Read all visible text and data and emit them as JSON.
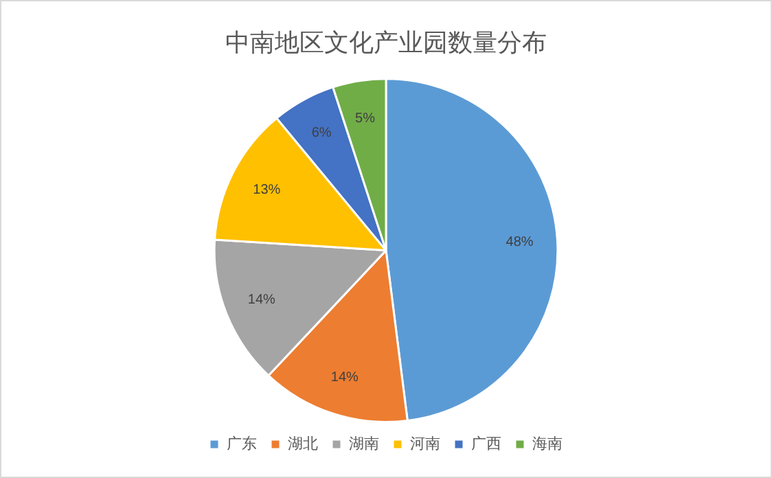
{
  "chart_data": {
    "type": "pie",
    "title": "中南地区文化产业园数量分布",
    "categories": [
      "广东",
      "湖北",
      "湖南",
      "河南",
      "广西",
      "海南"
    ],
    "values": [
      48,
      14,
      14,
      13,
      6,
      5
    ],
    "colors": [
      "#5b9bd5",
      "#ed7d31",
      "#a5a5a5",
      "#ffc000",
      "#4472c4",
      "#70ad47"
    ],
    "value_labels": [
      "48%",
      "14%",
      "14%",
      "13%",
      "6%",
      "5%"
    ],
    "legend": "bottom"
  }
}
